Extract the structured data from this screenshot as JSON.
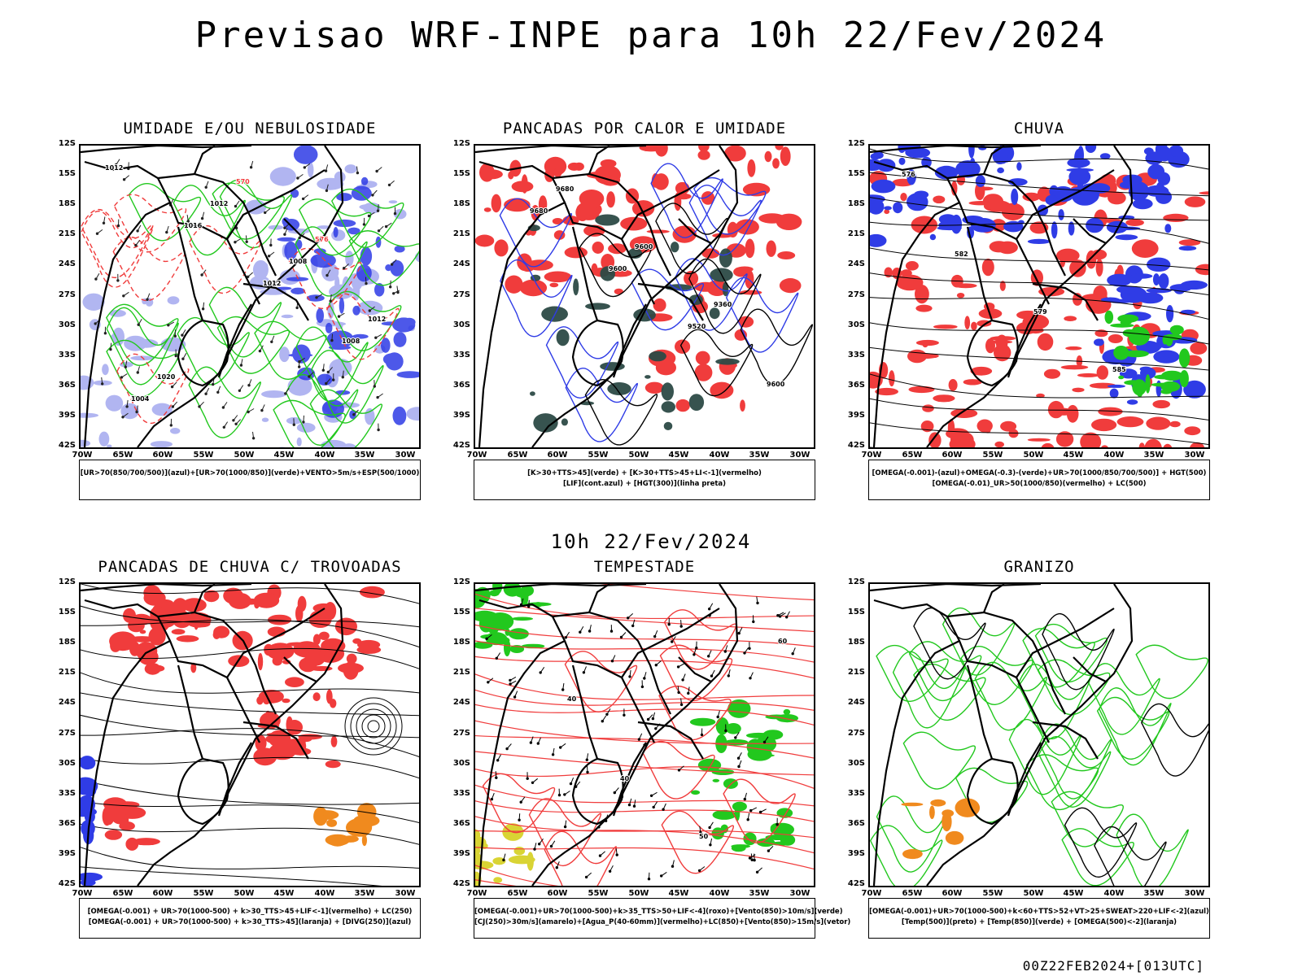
{
  "main_title": "Previsao WRF-INPE  para 10h 22/Fev/2024",
  "middle_title": "10h 22/Fev/2024",
  "footer": "00Z22FEB2024+[013UTC]",
  "lat_labels": [
    "12S",
    "15S",
    "18S",
    "21S",
    "24S",
    "27S",
    "30S",
    "33S",
    "36S",
    "39S",
    "42S"
  ],
  "lon_labels": [
    "70W",
    "65W",
    "60W",
    "55W",
    "50W",
    "45W",
    "40W",
    "35W",
    "30W"
  ],
  "colors": {
    "red": "#f03c3c",
    "green": "#22c81e",
    "blue": "#2f3ce6",
    "lightblue": "#a9aef0",
    "darkteal": "#2d4a46",
    "orange": "#f08a1e",
    "yellow": "#d8d22a"
  },
  "panels": [
    {
      "title": "UMIDADE E/OU NEBULOSIDADE",
      "legend": [
        "[UR>70(850/700/500)](azul)+[UR>70(1000/850)](verde)+VENTO>5m/s+ESP(500/1000)"
      ],
      "contour_labels": [
        "1012",
        "1016",
        "1012",
        "1008",
        "1004",
        "1012",
        "1008",
        "1012",
        "1020",
        "570",
        "576"
      ]
    },
    {
      "title": "PANCADAS POR CALOR E UMIDADE",
      "legend": [
        "[K>30+TTS>45](verde) + [K>30+TTS>45+LI<-1](vermelho)",
        "[LIF](cont.azul) + [HGT(300)](linha preta)"
      ],
      "contour_labels": [
        "9680",
        "9600",
        "9520",
        "9600",
        "9680",
        "9600",
        "9360"
      ]
    },
    {
      "title": "CHUVA",
      "legend": [
        "[OMEGA(-0.001)-(azul)+OMEGA(-0.3)-(verde)+UR>70(1000/850/700/500)] + HGT(500)",
        "[OMEGA(-0.01)_UR>50(1000/850)(vermelho) + LC(500)"
      ],
      "contour_labels": [
        "582",
        "579",
        "585",
        "576"
      ]
    },
    {
      "title": "PANCADAS DE CHUVA C/ TROVOADAS",
      "legend": [
        "[OMEGA(-0.001) + UR>70(1000-500) + k>30_TTS>45+LIF<-1](vermelho) + LC(250)",
        "[OMEGA(-0.001) + UR>70(1000-500) + k>30_TTS>45](laranja) + [DIVG(250)](azul)"
      ],
      "contour_labels": []
    },
    {
      "title": "TEMPESTADE",
      "legend": [
        "[OMEGA(-0.001)+UR>70(1000-500)+k>35_TTS>50+LIF<-4](roxo)+[Vento(850)>10m/s](verde)",
        "[CJ(250)>30m/s](amarelo)+[Agua_P(40-60mm)](vermelho)+LC(850)+[Vento(850)>15m/s](vetor)"
      ],
      "contour_labels": [
        "40",
        "50",
        "60",
        "40"
      ]
    },
    {
      "title": "GRANIZO",
      "legend": [
        "[OMEGA(-0.001)+UR>70(1000-500)+k<60+TTS>52+VT>25+SWEAT>220+LIF<-2](azul)",
        "[Temp(500)](preto) + [Temp(850)](verde) + [OMEGA(500)<-2](laranja)"
      ],
      "contour_labels": []
    }
  ]
}
